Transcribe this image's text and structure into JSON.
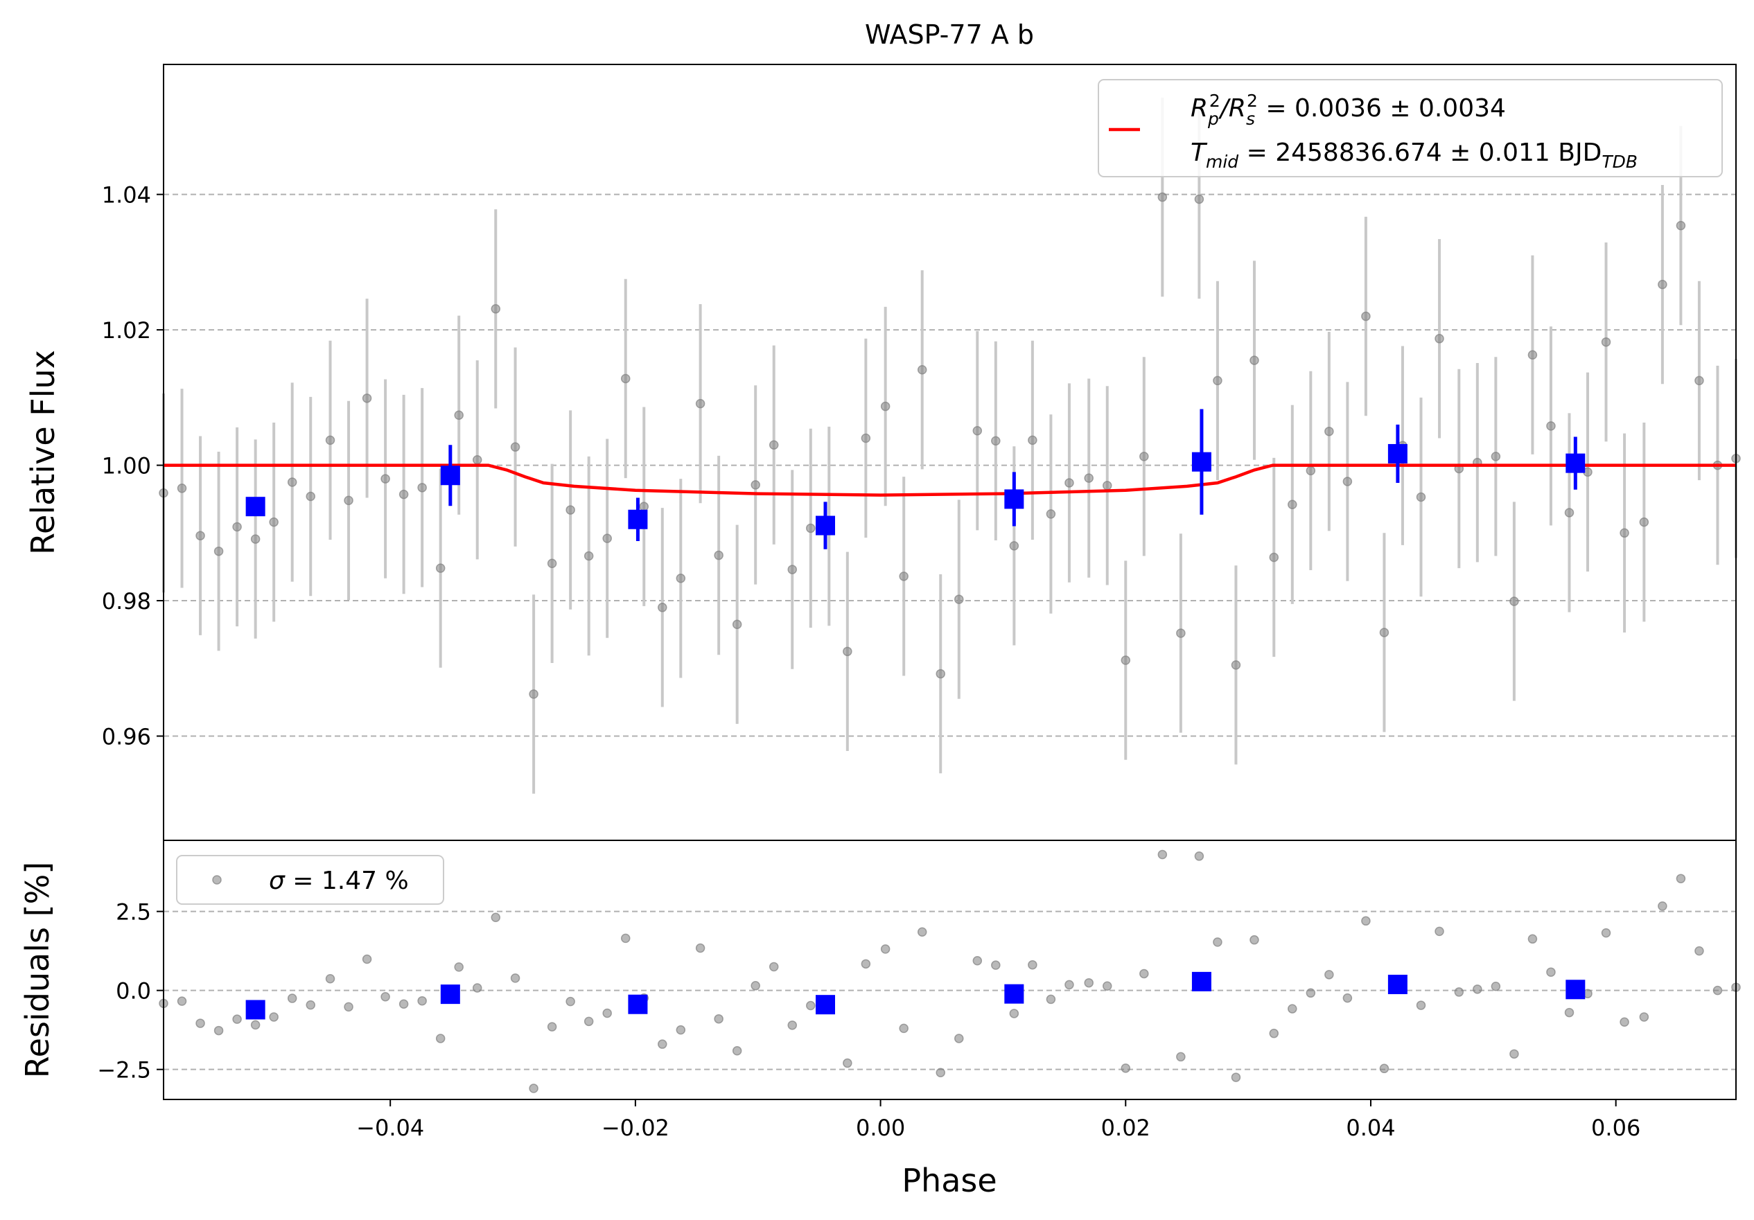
{
  "title": "WASP-77 A b",
  "colors": {
    "background": "#ffffff",
    "raw_points": "#808080",
    "raw_errorbars": "#c8c8c8",
    "binned": "#0000ff",
    "model": "#ff0000",
    "grid": "#b0b0b0"
  },
  "legend_main": {
    "line1_prefix": "R",
    "line1_sub1": "p",
    "line1_sup1": "2",
    "line1_slash": "/R",
    "line1_sub2": "s",
    "line1_sup2": "2",
    "line1_value": " = 0.0036 ± 0.0034",
    "line2_prefix": "T",
    "line2_sub": "mid",
    "line2_value": " = 2458836.674 ± 0.011 BJD",
    "line2_unit_sub": "TDB"
  },
  "legend_resid": {
    "sigma_symbol": "σ",
    "sigma_text": " = 1.47 %"
  },
  "chart_data": [
    {
      "type": "scatter",
      "panel": "light curve",
      "ylabel": "Relative Flux",
      "xlim": [
        -0.0585,
        0.0698
      ],
      "ylim": [
        0.9446,
        1.0592
      ],
      "yticks": [
        0.96,
        0.98,
        1.0,
        1.02,
        1.04
      ],
      "ytick_labels": [
        "0.96",
        "0.98",
        "1.00",
        "1.02",
        "1.04"
      ],
      "grid": "horizontal dashed",
      "legend_position": "top-right",
      "series": [
        {
          "kind": "raw",
          "x": [
            -0.0585,
            -0.057,
            -0.0555,
            -0.054,
            -0.0525,
            -0.051,
            -0.0495,
            -0.048,
            -0.0465,
            -0.0449,
            -0.0434,
            -0.0419,
            -0.0404,
            -0.0389,
            -0.0374,
            -0.0359,
            -0.0344,
            -0.0329,
            -0.0314,
            -0.0298,
            -0.0283,
            -0.0268,
            -0.0253,
            -0.0238,
            -0.0223,
            -0.0208,
            -0.0193,
            -0.0178,
            -0.0163,
            -0.0147,
            -0.0132,
            -0.0117,
            -0.0102,
            -0.0087,
            -0.0072,
            -0.0057,
            -0.0042,
            -0.0027,
            -0.0012,
            0.0004,
            0.0019,
            0.0034,
            0.0049,
            0.0064,
            0.0079,
            0.0094,
            0.0109,
            0.0124,
            0.0139,
            0.0154,
            0.017,
            0.0185,
            0.02,
            0.0215,
            0.023,
            0.0245,
            0.026,
            0.0275,
            0.029,
            0.0305,
            0.0321,
            0.0336,
            0.0351,
            0.0366,
            0.0381,
            0.0396,
            0.0411,
            0.0426,
            0.0441,
            0.0456,
            0.0472,
            0.0487,
            0.0502,
            0.0517,
            0.0532,
            0.0547,
            0.0562,
            0.0577,
            0.0592,
            0.0607,
            0.0623,
            0.0638,
            0.0653,
            0.0668,
            0.0683,
            0.0698
          ],
          "y": [
            0.9959,
            0.9966,
            0.9896,
            0.9873,
            0.9909,
            0.9891,
            0.9916,
            0.9975,
            0.9954,
            1.0037,
            0.9948,
            1.0099,
            0.998,
            0.9957,
            0.9967,
            0.9848,
            1.0074,
            1.0008,
            1.0231,
            1.0027,
            0.9662,
            0.9855,
            0.9934,
            0.9866,
            0.9892,
            1.0128,
            0.9939,
            0.979,
            0.9833,
            1.0091,
            0.9867,
            0.9765,
            0.9971,
            1.003,
            0.9846,
            0.9907,
            0.991,
            0.9725,
            1.004,
            1.0087,
            0.9836,
            1.0141,
            0.9692,
            0.9802,
            1.0051,
            1.0036,
            0.9881,
            1.0037,
            0.9928,
            0.9974,
            0.9981,
            0.997,
            0.9712,
            1.0013,
            1.0396,
            0.9752,
            1.0393,
            1.0125,
            0.9705,
            1.0155,
            0.9864,
            0.9942,
            0.9992,
            1.005,
            0.9976,
            1.022,
            0.9753,
            1.0029,
            0.9953,
            1.0187,
            0.9995,
            1.0004,
            1.0013,
            0.9799,
            1.0163,
            1.0058,
            0.993,
            0.999,
            1.0182,
            0.99,
            0.9916,
            1.0267,
            1.0354,
            1.0125,
            1.0,
            1.001
          ],
          "yerr": 0.0147
        },
        {
          "kind": "binned",
          "x": [
            -0.051,
            -0.0351,
            -0.0198,
            -0.0045,
            0.0109,
            0.0262,
            0.0422,
            0.0567
          ],
          "y": [
            0.9939,
            0.9985,
            0.992,
            0.9911,
            0.995,
            1.0005,
            1.0017,
            1.0003
          ],
          "yerr": [
            0.0,
            0.0045,
            0.0032,
            0.0035,
            0.004,
            0.0078,
            0.0043,
            0.0039
          ]
        },
        {
          "kind": "model",
          "name": "R_p^2/R_s^2 = 0.0036 ± 0.0034",
          "x": [
            -0.0585,
            -0.032,
            -0.0305,
            -0.029,
            -0.0275,
            -0.025,
            -0.02,
            -0.01,
            0.0,
            0.01,
            0.02,
            0.025,
            0.0275,
            0.029,
            0.0305,
            0.032,
            0.0698
          ],
          "y": [
            1.0,
            1.0,
            0.9993,
            0.9983,
            0.9974,
            0.9969,
            0.9963,
            0.9958,
            0.9956,
            0.9958,
            0.9963,
            0.9969,
            0.9974,
            0.9983,
            0.9993,
            1.0,
            1.0
          ]
        }
      ]
    },
    {
      "type": "scatter",
      "panel": "residuals",
      "xlabel": "Phase",
      "ylabel": "Residuals [%]",
      "xlim": [
        -0.0585,
        0.0698
      ],
      "ylim": [
        -3.45,
        4.75
      ],
      "yticks": [
        -2.5,
        0.0,
        2.5
      ],
      "ytick_labels": [
        "−2.5",
        "0.0",
        "2.5"
      ],
      "xticks": [
        -0.04,
        -0.02,
        0.0,
        0.02,
        0.04,
        0.06
      ],
      "xtick_labels": [
        "−0.04",
        "−0.02",
        "0.00",
        "0.02",
        "0.04",
        "0.06"
      ],
      "grid": "horizontal dashed",
      "legend_position": "top-left",
      "series": [
        {
          "kind": "raw",
          "name": "σ = 1.47 %",
          "x": [
            -0.0585,
            -0.057,
            -0.0555,
            -0.054,
            -0.0525,
            -0.051,
            -0.0495,
            -0.048,
            -0.0465,
            -0.0449,
            -0.0434,
            -0.0419,
            -0.0404,
            -0.0389,
            -0.0374,
            -0.0359,
            -0.0344,
            -0.0329,
            -0.0314,
            -0.0298,
            -0.0283,
            -0.0268,
            -0.0253,
            -0.0238,
            -0.0223,
            -0.0208,
            -0.0193,
            -0.0178,
            -0.0163,
            -0.0147,
            -0.0132,
            -0.0117,
            -0.0102,
            -0.0087,
            -0.0072,
            -0.0057,
            -0.0042,
            -0.0027,
            -0.0012,
            0.0004,
            0.0019,
            0.0034,
            0.0049,
            0.0064,
            0.0079,
            0.0094,
            0.0109,
            0.0124,
            0.0139,
            0.0154,
            0.017,
            0.0185,
            0.02,
            0.0215,
            0.023,
            0.0245,
            0.026,
            0.0275,
            0.029,
            0.0305,
            0.0321,
            0.0336,
            0.0351,
            0.0366,
            0.0381,
            0.0396,
            0.0411,
            0.0426,
            0.0441,
            0.0456,
            0.0472,
            0.0487,
            0.0502,
            0.0517,
            0.0532,
            0.0547,
            0.0562,
            0.0577,
            0.0592,
            0.0607,
            0.0623,
            0.0638,
            0.0653,
            0.0668,
            0.0683,
            0.0698
          ],
          "y": [
            -0.41,
            -0.34,
            -1.04,
            -1.27,
            -0.91,
            -1.09,
            -0.84,
            -0.25,
            -0.46,
            0.37,
            -0.52,
            0.99,
            -0.2,
            -0.43,
            -0.33,
            -1.52,
            0.74,
            0.08,
            2.31,
            0.39,
            -3.1,
            -1.15,
            -0.35,
            -0.98,
            -0.72,
            1.65,
            -0.24,
            -1.7,
            -1.25,
            1.34,
            -0.9,
            -1.91,
            0.15,
            0.75,
            -1.1,
            -0.48,
            -0.46,
            -2.3,
            0.84,
            1.31,
            -1.2,
            1.85,
            -2.6,
            -1.52,
            0.94,
            0.8,
            -0.73,
            0.81,
            -0.28,
            0.18,
            0.24,
            0.14,
            -2.46,
            0.53,
            4.3,
            -2.1,
            4.25,
            1.53,
            -2.75,
            1.6,
            -1.36,
            -0.58,
            -0.08,
            0.5,
            -0.24,
            2.2,
            -2.47,
            0.29,
            -0.47,
            1.87,
            -0.05,
            0.04,
            0.13,
            -2.01,
            1.63,
            0.58,
            -0.7,
            -0.1,
            1.82,
            -1.0,
            -0.84,
            2.67,
            3.54,
            1.25,
            0.0,
            0.1
          ]
        },
        {
          "kind": "binned",
          "x": [
            -0.051,
            -0.0351,
            -0.0198,
            -0.0045,
            0.0109,
            0.0262,
            0.0422,
            0.0567
          ],
          "y": [
            -0.61,
            -0.12,
            -0.44,
            -0.45,
            -0.11,
            0.28,
            0.19,
            0.03
          ]
        }
      ]
    }
  ]
}
